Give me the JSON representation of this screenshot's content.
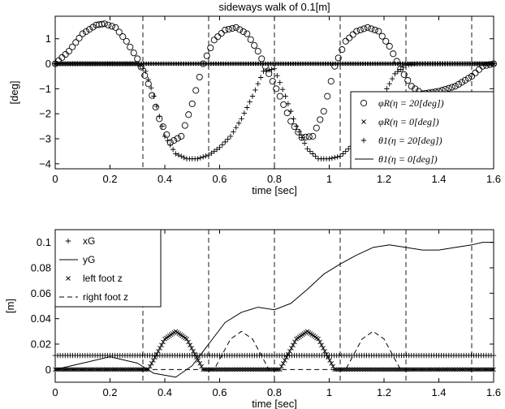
{
  "chart_data": [
    {
      "type": "scatter",
      "title": "sideways walk of 0.1[m]",
      "xlabel": "time [sec]",
      "ylabel": "[deg]",
      "xlim": [
        0,
        1.6
      ],
      "ylim": [
        -4.2,
        1.9
      ],
      "xticks": [
        "0",
        "0.2",
        "0.4",
        "0.6",
        "0.8",
        "1",
        "1.2",
        "1.4",
        "1.6"
      ],
      "yticks": [
        "1",
        "0",
        "−1",
        "−2",
        "−3",
        "−4"
      ],
      "vlines": [
        0.32,
        0.56,
        0.8,
        1.04,
        1.28,
        1.52
      ],
      "legend_position": "bottom-right",
      "series": [
        {
          "name": "φR(η = 20[deg])",
          "marker": "circle",
          "x": [
            0.0,
            0.05,
            0.1,
            0.15,
            0.18,
            0.22,
            0.26,
            0.3,
            0.34,
            0.38,
            0.42,
            0.46,
            0.5,
            0.54,
            0.58,
            0.62,
            0.66,
            0.7,
            0.74,
            0.78,
            0.82,
            0.86,
            0.9,
            0.94,
            0.98,
            1.02,
            1.06,
            1.1,
            1.14,
            1.18,
            1.22,
            1.26,
            1.3,
            1.34,
            1.4,
            1.46,
            1.52,
            1.56,
            1.6
          ],
          "y": [
            0.0,
            0.5,
            1.2,
            1.55,
            1.6,
            1.45,
            0.9,
            0.2,
            -0.8,
            -2.2,
            -3.15,
            -2.9,
            -1.6,
            0.0,
            0.95,
            1.35,
            1.45,
            1.2,
            0.5,
            -0.4,
            -1.3,
            -2.3,
            -2.95,
            -2.9,
            -1.9,
            -0.1,
            0.9,
            1.3,
            1.45,
            1.3,
            0.7,
            -0.2,
            -0.9,
            -1.2,
            -1.1,
            -0.9,
            -0.5,
            -0.1,
            0.0
          ]
        },
        {
          "name": "φR(η = 0[deg])",
          "marker": "x",
          "x": [
            0.0,
            0.4,
            0.8,
            1.2,
            1.6
          ],
          "y": [
            0.0,
            0.0,
            0.0,
            0.0,
            0.0
          ]
        },
        {
          "name": "θ1(η = 20[deg])",
          "marker": "plus",
          "x": [
            0.0,
            0.3,
            0.33,
            0.36,
            0.4,
            0.44,
            0.48,
            0.52,
            0.56,
            0.6,
            0.64,
            0.68,
            0.72,
            0.76,
            0.8,
            0.84,
            0.88,
            0.92,
            0.96,
            1.0,
            1.04,
            1.08,
            1.12,
            1.16,
            1.2,
            1.24,
            1.28,
            1.32,
            1.36,
            1.6
          ],
          "y": [
            0.0,
            0.0,
            -0.3,
            -1.3,
            -2.9,
            -3.6,
            -3.8,
            -3.8,
            -3.65,
            -3.35,
            -2.9,
            -2.2,
            -1.3,
            -0.3,
            -0.2,
            -1.3,
            -2.5,
            -3.4,
            -3.8,
            -3.8,
            -3.7,
            -3.3,
            -2.7,
            -2.0,
            -1.2,
            -0.4,
            -0.05,
            0.0,
            0.0,
            0.0
          ]
        },
        {
          "name": "θ1(η = 0[deg])",
          "marker": "line",
          "x": [
            0.0,
            1.6
          ],
          "y": [
            0.0,
            0.0
          ]
        }
      ]
    },
    {
      "type": "line",
      "xlabel": "time [sec]",
      "ylabel": "[m]",
      "xlim": [
        0,
        1.6
      ],
      "ylim": [
        -0.01,
        0.11
      ],
      "xticks": [
        "0",
        "0.2",
        "0.4",
        "0.6",
        "0.8",
        "1",
        "1.2",
        "1.4",
        "1.6"
      ],
      "yticks": [
        "0.1",
        "0.08",
        "0.06",
        "0.04",
        "0.02",
        "0"
      ],
      "vlines": [
        0.32,
        0.56,
        0.8,
        1.04,
        1.28,
        1.52
      ],
      "legend_position": "top-left",
      "series": [
        {
          "name": "xG",
          "marker": "plus",
          "x": [
            0.0,
            0.4,
            0.8,
            1.2,
            1.6
          ],
          "y": [
            0.011,
            0.011,
            0.011,
            0.011,
            0.011
          ]
        },
        {
          "name": "yG",
          "marker": "line",
          "x": [
            0.0,
            0.1,
            0.2,
            0.3,
            0.36,
            0.44,
            0.5,
            0.56,
            0.62,
            0.68,
            0.74,
            0.8,
            0.86,
            0.92,
            0.98,
            1.04,
            1.1,
            1.16,
            1.22,
            1.28,
            1.34,
            1.4,
            1.46,
            1.52,
            1.56,
            1.6
          ],
          "y": [
            0.0,
            0.005,
            0.01,
            0.005,
            -0.003,
            -0.006,
            0.003,
            0.02,
            0.037,
            0.045,
            0.049,
            0.047,
            0.052,
            0.063,
            0.075,
            0.083,
            0.09,
            0.096,
            0.098,
            0.096,
            0.094,
            0.094,
            0.096,
            0.098,
            0.1,
            0.1
          ]
        },
        {
          "name": "left foot z",
          "marker": "x",
          "x": [
            0.0,
            0.34,
            0.37,
            0.4,
            0.44,
            0.48,
            0.51,
            0.54,
            0.82,
            0.85,
            0.88,
            0.92,
            0.96,
            0.99,
            1.02,
            1.6
          ],
          "y": [
            0.0,
            0.0,
            0.012,
            0.024,
            0.03,
            0.024,
            0.012,
            0.0,
            0.0,
            0.012,
            0.024,
            0.03,
            0.024,
            0.012,
            0.0,
            0.0
          ]
        },
        {
          "name": "right foot z",
          "marker": "dash",
          "x": [
            0.0,
            0.58,
            0.61,
            0.64,
            0.68,
            0.72,
            0.75,
            0.78,
            1.06,
            1.09,
            1.12,
            1.16,
            1.2,
            1.23,
            1.26,
            1.6
          ],
          "y": [
            0.0,
            0.0,
            0.012,
            0.024,
            0.03,
            0.024,
            0.012,
            0.0,
            0.0,
            0.012,
            0.024,
            0.03,
            0.024,
            0.012,
            0.0,
            0.0
          ]
        }
      ]
    }
  ]
}
